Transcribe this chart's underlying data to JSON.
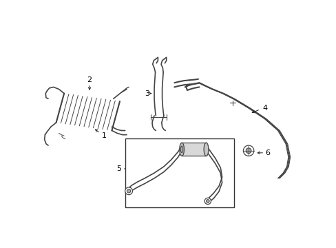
{
  "background_color": "#ffffff",
  "line_color": "#444444",
  "text_color": "#000000",
  "figsize": [
    4.89,
    3.6
  ],
  "dpi": 100,
  "arrow_color": "#222222"
}
